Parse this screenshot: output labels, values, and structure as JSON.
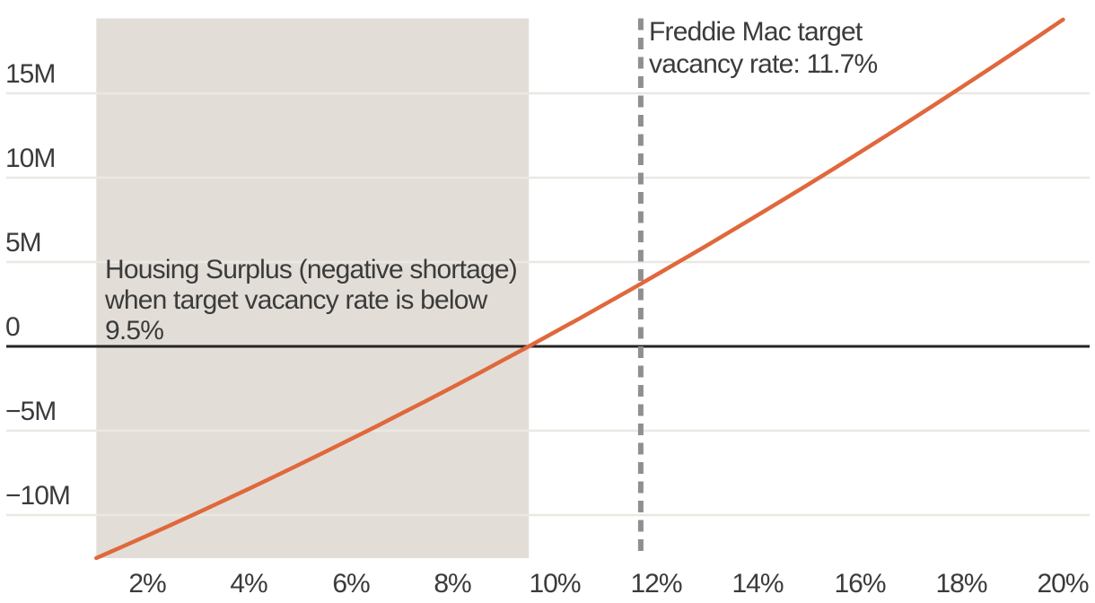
{
  "chart_data": {
    "type": "line",
    "title": "",
    "xlabel": "",
    "ylabel": "",
    "x_tick_labels": [
      "2%",
      "4%",
      "6%",
      "8%",
      "10%",
      "12%",
      "14%",
      "16%",
      "18%",
      "20%"
    ],
    "x_tick_values": [
      2,
      4,
      6,
      8,
      10,
      12,
      14,
      16,
      18,
      20
    ],
    "y_tick_labels": [
      "15M",
      "10M",
      "5M",
      "0",
      "−5M",
      "−10M"
    ],
    "y_tick_values": [
      15,
      10,
      5,
      0,
      -5,
      -10
    ],
    "x_range": [
      1,
      20.55
    ],
    "y_range": [
      -12.9,
      19.5
    ],
    "grid": "horizontal-only",
    "legend": "none",
    "series": [
      {
        "name": "housing-shortage-millions-vs-target-vacancy-rate",
        "color": "#E0683C",
        "points": [
          [
            1,
            -12.55
          ],
          [
            1.5,
            -11.89
          ],
          [
            2,
            -11.22
          ],
          [
            2.5,
            -10.54
          ],
          [
            3,
            -9.85
          ],
          [
            3.5,
            -9.15
          ],
          [
            4,
            -8.44
          ],
          [
            4.5,
            -7.72
          ],
          [
            5,
            -6.99
          ],
          [
            5.5,
            -6.25
          ],
          [
            6,
            -5.5
          ],
          [
            6.5,
            -4.75
          ],
          [
            7,
            -3.98
          ],
          [
            7.5,
            -3.2
          ],
          [
            8,
            -2.42
          ],
          [
            8.5,
            -1.62
          ],
          [
            9,
            -0.81
          ],
          [
            9.5,
            0
          ],
          [
            10,
            0.83
          ],
          [
            10.5,
            1.66
          ],
          [
            11,
            2.51
          ],
          [
            11.5,
            3.36
          ],
          [
            11.7,
            3.71
          ],
          [
            12,
            4.23
          ],
          [
            12.5,
            5.1
          ],
          [
            13,
            5.98
          ],
          [
            13.5,
            6.88
          ],
          [
            14,
            7.78
          ],
          [
            14.5,
            8.69
          ],
          [
            15,
            9.61
          ],
          [
            15.5,
            10.54
          ],
          [
            16,
            11.49
          ],
          [
            16.5,
            12.44
          ],
          [
            17,
            13.4
          ],
          [
            17.5,
            14.37
          ],
          [
            18,
            15.35
          ],
          [
            18.5,
            16.34
          ],
          [
            19,
            17.34
          ],
          [
            19.5,
            18.35
          ],
          [
            20,
            19.37
          ]
        ]
      }
    ],
    "shaded_region": {
      "x_start": 1,
      "x_end": 9.5,
      "color": "#E2DED7",
      "label_lines": [
        "Housing Surplus (negative shortage)",
        "when target vacancy rate is below",
        "9.5%"
      ]
    },
    "reference_line": {
      "x": 11.7,
      "style": "dashed",
      "color": "#8F8F8F",
      "label_lines": [
        "Freddie Mac target",
        "vacancy rate: 11.7%"
      ]
    }
  },
  "colors": {
    "background": "#FFFFFF",
    "line": "#E0683C",
    "shaded_region": "#E2DED7",
    "reference_dash": "#8F8F8F",
    "gridline": "#EBE8E3",
    "zero_line": "#262324",
    "text": "#3B3B3B"
  }
}
